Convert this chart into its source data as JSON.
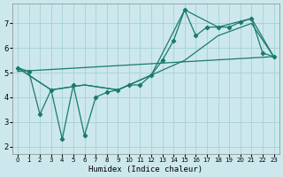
{
  "xlabel": "Humidex (Indice chaleur)",
  "bg_color": "#cce8ec",
  "grid_color": "#aad4d8",
  "line_color": "#1a7a6e",
  "xlim": [
    -0.5,
    23.5
  ],
  "ylim": [
    1.7,
    7.8
  ],
  "yticks": [
    2,
    3,
    4,
    5,
    6,
    7
  ],
  "xticks": [
    0,
    1,
    2,
    3,
    4,
    5,
    6,
    7,
    8,
    9,
    10,
    11,
    12,
    13,
    14,
    15,
    16,
    17,
    18,
    19,
    20,
    21,
    22,
    23
  ],
  "line1_x": [
    0,
    1,
    2,
    3,
    4,
    5,
    6,
    7,
    8,
    9,
    10,
    11,
    12,
    13,
    14,
    15,
    16,
    17,
    18,
    19,
    20,
    21,
    22,
    23
  ],
  "line1_y": [
    5.2,
    5.05,
    3.3,
    4.3,
    2.3,
    4.5,
    2.45,
    4.0,
    4.2,
    4.3,
    4.5,
    4.5,
    4.9,
    5.5,
    6.3,
    7.55,
    6.5,
    6.85,
    6.85,
    6.85,
    7.05,
    7.2,
    5.8,
    5.65
  ],
  "line2_x": [
    0,
    3,
    6,
    9,
    12,
    15,
    18,
    21,
    23
  ],
  "line2_y": [
    5.2,
    4.3,
    4.5,
    4.3,
    4.9,
    5.5,
    6.5,
    7.0,
    5.65
  ],
  "line3_x": [
    0,
    3,
    6,
    9,
    12,
    15,
    18,
    21,
    23
  ],
  "line3_y": [
    5.2,
    4.3,
    4.5,
    4.3,
    4.9,
    7.55,
    6.85,
    7.2,
    5.65
  ],
  "line4_x": [
    0,
    23
  ],
  "line4_y": [
    5.05,
    5.65
  ]
}
